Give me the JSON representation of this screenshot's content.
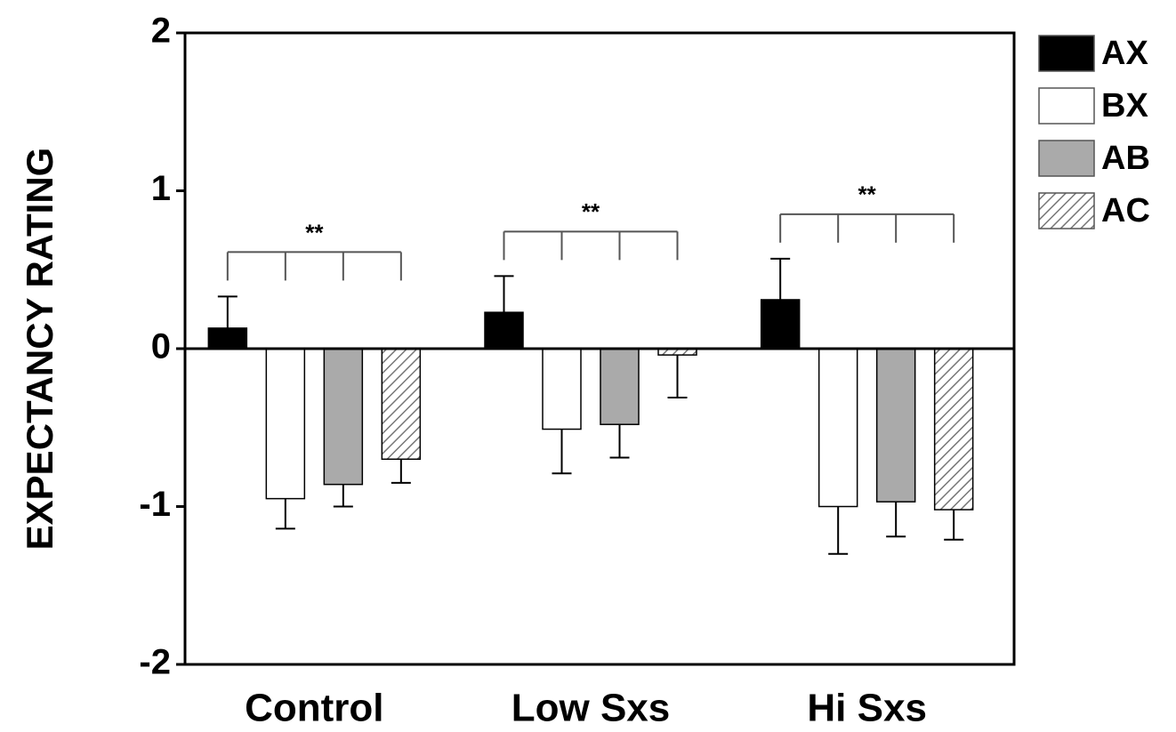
{
  "chart_data": {
    "type": "bar",
    "ylabel": "EXPECTANCY RATING",
    "categories": [
      "Control",
      "Low Sxs",
      "Hi Sxs"
    ],
    "series": [
      {
        "name": "AX",
        "color": "#000000",
        "values": [
          0.13,
          0.23,
          0.31
        ],
        "errors": [
          0.2,
          0.23,
          0.26
        ]
      },
      {
        "name": "BX",
        "color": "#ffffff",
        "values": [
          -0.95,
          -0.51,
          -1.0
        ],
        "errors": [
          0.19,
          0.28,
          0.3
        ]
      },
      {
        "name": "AB",
        "color": "#aaaaaa",
        "values": [
          -0.86,
          -0.48,
          -0.97
        ],
        "errors": [
          0.14,
          0.21,
          0.22
        ]
      },
      {
        "name": "AC",
        "color": "#ffffff",
        "hatch": true,
        "values": [
          -0.7,
          -0.04,
          -1.02
        ],
        "errors": [
          0.15,
          0.27,
          0.19
        ]
      }
    ],
    "annotations": [
      {
        "text": "**",
        "category": 0
      },
      {
        "text": "**",
        "category": 1
      },
      {
        "text": "**",
        "category": 2
      }
    ],
    "ylim": [
      -2,
      2
    ],
    "yticks": [
      -2,
      -1,
      0,
      1,
      2
    ],
    "legend": "outside-right",
    "grid": false
  }
}
